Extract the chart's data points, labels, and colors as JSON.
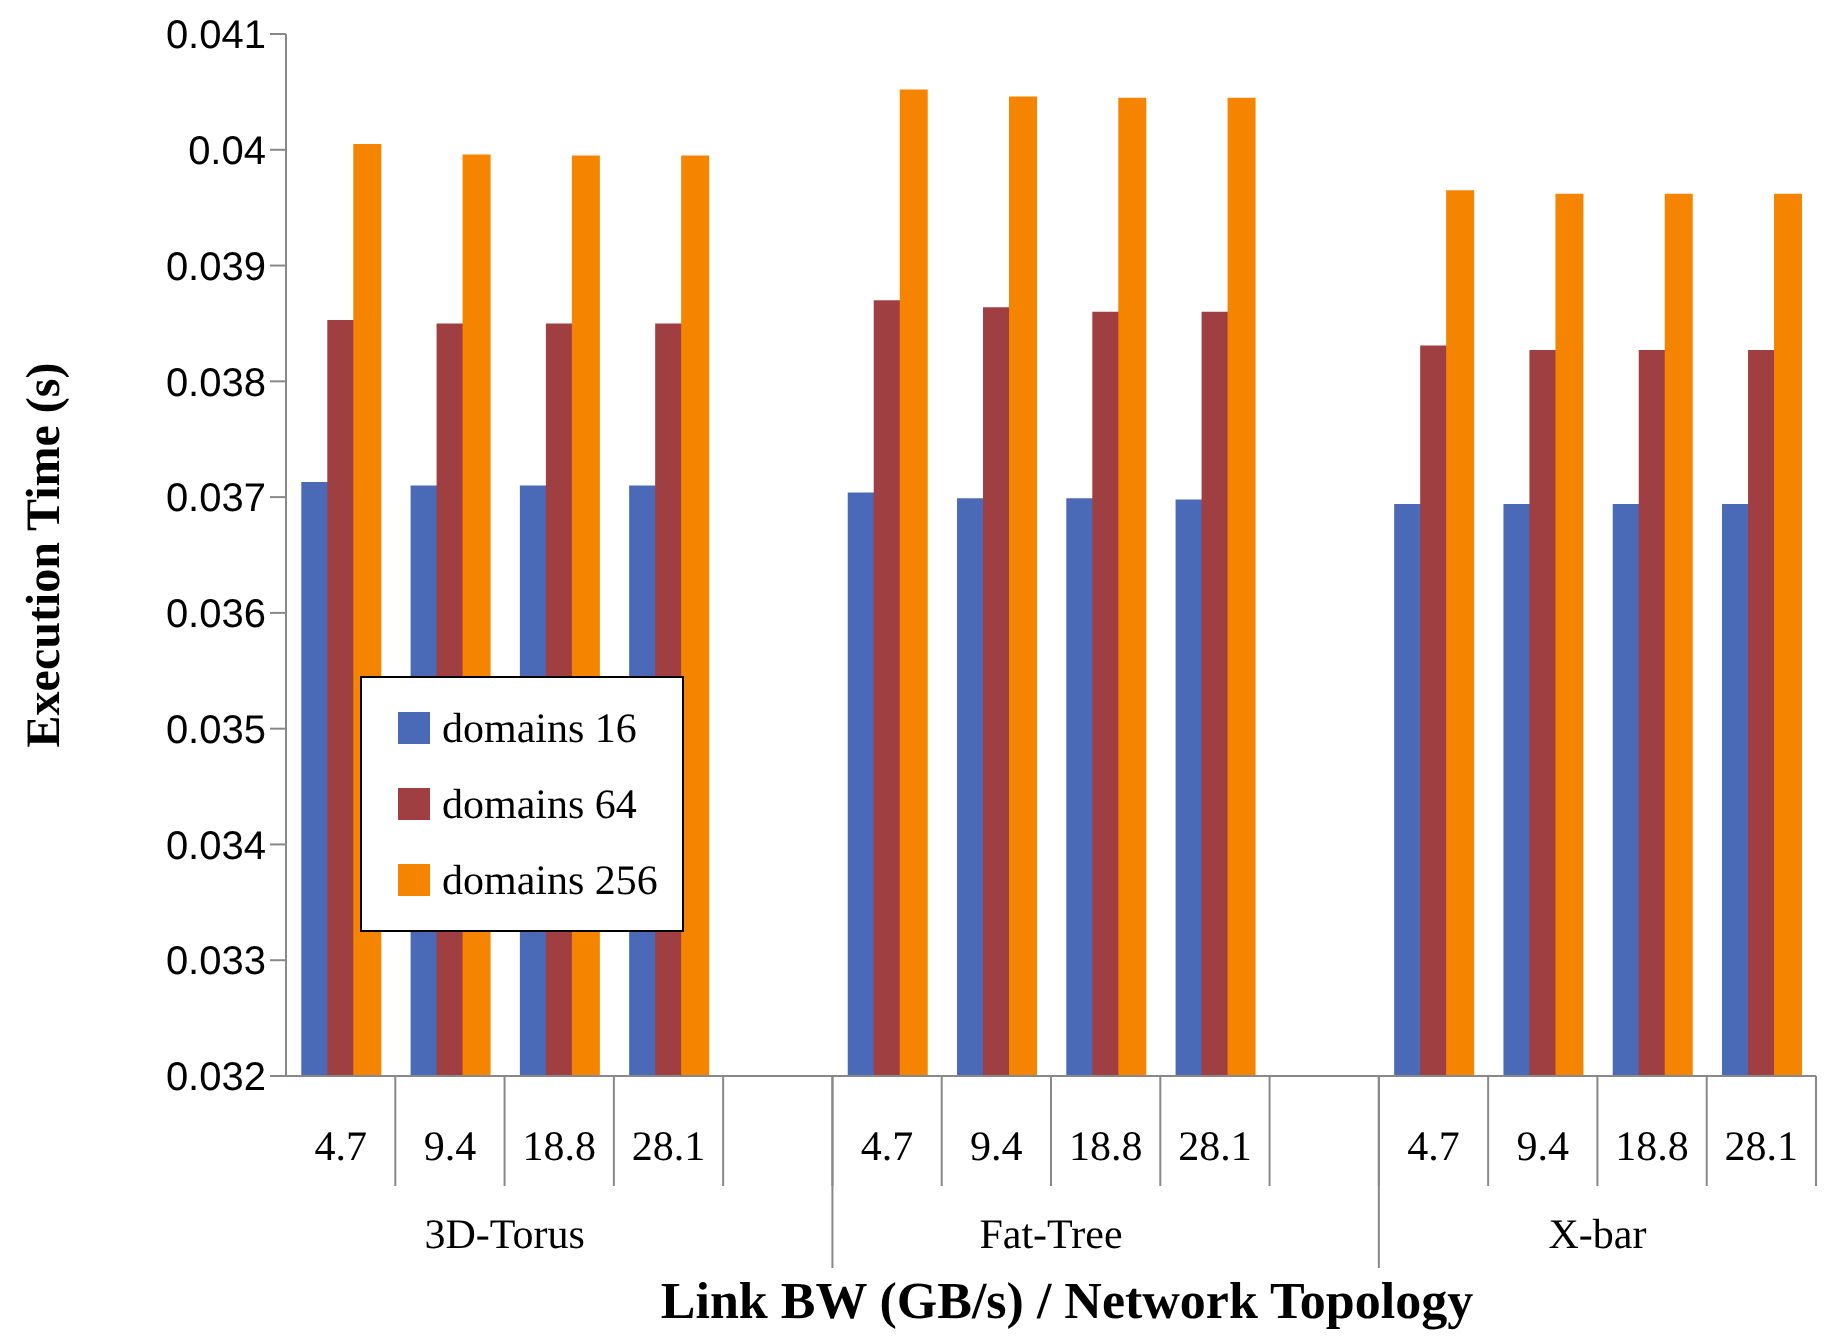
{
  "chart_data": {
    "type": "bar",
    "xlabel": "Link BW (GB/s) / Network Topology",
    "ylabel": "Execution Time (s)",
    "categories": [
      "4.7",
      "9.4",
      "18.8",
      "28.1",
      null,
      "4.7",
      "9.4",
      "18.8",
      "28.1",
      null,
      "4.7",
      "9.4",
      "18.8",
      "28.1"
    ],
    "annotations": [
      "3D-Torus",
      "Fat-Tree",
      "X-bar"
    ],
    "series": [
      {
        "name": "domains 16",
        "color": "#4a6ab8",
        "values": [
          0.03713,
          0.0371,
          0.0371,
          0.0371,
          null,
          0.03704,
          0.03699,
          0.03699,
          0.03698,
          null,
          0.03694,
          0.03694,
          0.03694,
          0.03694
        ]
      },
      {
        "name": "domains 64",
        "color": "#a03f42",
        "values": [
          0.03853,
          0.0385,
          0.0385,
          0.0385,
          null,
          0.0387,
          0.03864,
          0.0386,
          0.0386,
          null,
          0.03831,
          0.03827,
          0.03827,
          0.03827
        ]
      },
      {
        "name": "domains 256",
        "color": "#f58400",
        "values": [
          0.04005,
          0.03996,
          0.03995,
          0.03995,
          null,
          0.04052,
          0.04046,
          0.04045,
          0.04045,
          null,
          0.03965,
          0.03962,
          0.03962,
          0.03962
        ]
      }
    ],
    "ylim": [
      0.032,
      0.041
    ],
    "yticks": [
      0.032,
      0.033,
      0.034,
      0.035,
      0.036,
      0.037,
      0.038,
      0.039,
      0.04,
      0.041
    ],
    "grid": false,
    "legend": "left"
  }
}
